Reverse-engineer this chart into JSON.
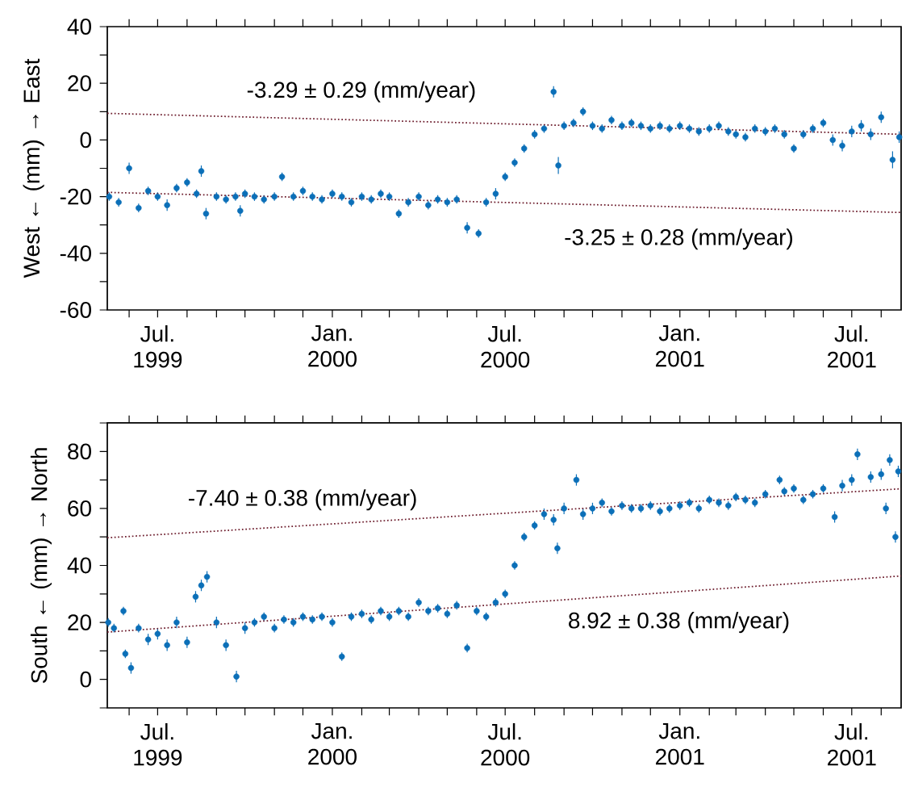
{
  "chart_data": [
    {
      "type": "scatter",
      "ylabel": "West ← (mm) → East",
      "xlim": [
        "1999-05-09",
        "2001-08-22"
      ],
      "ylim": [
        -60,
        40
      ],
      "yticks": [
        -60,
        {
          "value": -50,
          "label": null
        },
        -40,
        {
          "value": -30,
          "label": null
        },
        -20,
        {
          "value": -10,
          "label": null
        },
        0,
        {
          "value": 10,
          "label": null
        },
        20,
        {
          "value": 30,
          "label": null
        },
        40
      ],
      "xticks": [
        {
          "value": "1999-06-01",
          "label": null
        },
        {
          "value": "1999-07-01",
          "label": "Jul. 1999"
        },
        {
          "value": "1999-08-01",
          "label": null
        },
        {
          "value": "1999-09-01",
          "label": null
        },
        {
          "value": "1999-10-01",
          "label": null
        },
        {
          "value": "1999-11-01",
          "label": null
        },
        {
          "value": "1999-12-01",
          "label": null
        },
        {
          "value": "2000-01-01",
          "label": "Jan. 2000"
        },
        {
          "value": "2000-02-01",
          "label": null
        },
        {
          "value": "2000-03-01",
          "label": null
        },
        {
          "value": "2000-04-01",
          "label": null
        },
        {
          "value": "2000-05-01",
          "label": null
        },
        {
          "value": "2000-06-01",
          "label": null
        },
        {
          "value": "2000-07-01",
          "label": "Jul. 2000"
        },
        {
          "value": "2000-08-01",
          "label": null
        },
        {
          "value": "2000-09-01",
          "label": null
        },
        {
          "value": "2000-10-01",
          "label": null
        },
        {
          "value": "2000-11-01",
          "label": null
        },
        {
          "value": "2000-12-01",
          "label": null
        },
        {
          "value": "2001-01-01",
          "label": "Jan. 2001"
        },
        {
          "value": "2001-02-01",
          "label": null
        },
        {
          "value": "2001-03-01",
          "label": null
        },
        {
          "value": "2001-04-01",
          "label": null
        },
        {
          "value": "2001-05-01",
          "label": null
        },
        {
          "value": "2001-06-01",
          "label": null
        },
        {
          "value": "2001-07-01",
          "label": "Jul. 2001"
        },
        {
          "value": "2001-08-01",
          "label": null
        }
      ],
      "series": [
        {
          "color": "#0b6fb8",
          "marker": "circle",
          "x": [
            "1999-05-11",
            "1999-05-21",
            "1999-06-01",
            "1999-06-11",
            "1999-06-21",
            "1999-07-01",
            "1999-07-11",
            "1999-07-21",
            "1999-08-01",
            "1999-08-11",
            "1999-08-16",
            "1999-08-21",
            "1999-09-01",
            "1999-09-11",
            "1999-09-21",
            "1999-09-26",
            "1999-10-01",
            "1999-10-11",
            "1999-10-21",
            "1999-11-01",
            "1999-11-09",
            "1999-11-21",
            "1999-12-01",
            "1999-12-11",
            "1999-12-21",
            "2000-01-01",
            "2000-01-11",
            "2000-01-21",
            "2000-02-01",
            "2000-02-11",
            "2000-02-21",
            "2000-03-01",
            "2000-03-11",
            "2000-03-21",
            "2000-04-01",
            "2000-04-11",
            "2000-04-21",
            "2000-05-01",
            "2000-05-11",
            "2000-05-22",
            "2000-06-03",
            "2000-06-11",
            "2000-06-21",
            "2000-07-01",
            "2000-07-11",
            "2000-07-21",
            "2000-08-01",
            "2000-08-11",
            "2000-08-21",
            "2000-08-26",
            "2000-09-01",
            "2000-09-11",
            "2000-09-21",
            "2000-10-01",
            "2000-10-11",
            "2000-10-21",
            "2000-11-01",
            "2000-11-11",
            "2000-11-21",
            "2000-12-01",
            "2000-12-11",
            "2000-12-21",
            "2001-01-01",
            "2001-01-11",
            "2001-01-21",
            "2001-02-01",
            "2001-02-11",
            "2001-02-21",
            "2001-03-01",
            "2001-03-11",
            "2001-03-21",
            "2001-04-01",
            "2001-04-11",
            "2001-04-21",
            "2001-05-01",
            "2001-05-11",
            "2001-05-21",
            "2001-06-01",
            "2001-06-11",
            "2001-06-21",
            "2001-07-01",
            "2001-07-11",
            "2001-07-21",
            "2001-08-01",
            "2001-08-13",
            "2001-08-20"
          ],
          "values": [
            -20,
            -22,
            -10,
            -24,
            -18,
            -20,
            -23,
            -17,
            -15,
            -19,
            -11,
            -26,
            -20,
            -21,
            -20,
            -25,
            -19,
            -20,
            -21,
            -20,
            -13,
            -20,
            -18,
            -20,
            -21,
            -19,
            -20,
            -22,
            -20,
            -21,
            -19,
            -20,
            -26,
            -22,
            -20,
            -23,
            -21,
            -22,
            -21,
            -31,
            -33,
            -22,
            -19,
            -13,
            -8,
            -3,
            2,
            4,
            17,
            -9,
            5,
            6,
            10,
            5,
            4,
            7,
            5,
            6,
            5,
            4,
            5,
            4,
            5,
            4,
            3,
            4,
            5,
            3,
            2,
            1,
            4,
            3,
            4,
            2,
            -3,
            2,
            4,
            6,
            0,
            -2,
            3,
            5,
            2,
            8,
            -7,
            1
          ],
          "errors": [
            1.5,
            1.5,
            2,
            1.5,
            1.5,
            1.5,
            2,
            1.5,
            1.5,
            1.5,
            2,
            2,
            1.5,
            1.5,
            1.5,
            2,
            1.5,
            1.5,
            1.5,
            1.5,
            1.5,
            1.5,
            1.5,
            1.5,
            1.5,
            1.5,
            1.5,
            1.5,
            1.5,
            1.5,
            1.5,
            1.5,
            1.5,
            1.5,
            1.5,
            1.5,
            1.5,
            1.5,
            1.5,
            2,
            1.5,
            1.5,
            2,
            1.5,
            1.5,
            1.5,
            1.5,
            1.5,
            2,
            3,
            1.5,
            1.5,
            1.5,
            1.5,
            1.5,
            1.5,
            1.5,
            1.5,
            1.5,
            1.5,
            1.5,
            1.5,
            1.5,
            1.5,
            1.5,
            1.5,
            1.5,
            1.5,
            1.5,
            1.5,
            1.5,
            1.5,
            1.5,
            1.5,
            1.5,
            1.5,
            1.5,
            1.5,
            2,
            2,
            2,
            2,
            2,
            2,
            3,
            2
          ]
        },
        {
          "type": "line",
          "color": "#6b1a2a",
          "line_style": "dotted",
          "marker": "none",
          "x": [
            "1999-05-09",
            "2001-08-22"
          ],
          "values": [
            9.4,
            2
          ]
        },
        {
          "type": "line",
          "color": "#6b1a2a",
          "line_style": "dotted",
          "marker": "none",
          "x": [
            "1999-05-09",
            "2001-08-22"
          ],
          "values": [
            -18.5,
            -25.6
          ]
        }
      ],
      "annotations": [
        "-3.29 ± 0.29 (mm/year)",
        "-3.25 ± 0.28 (mm/year)"
      ]
    },
    {
      "type": "scatter",
      "ylabel": "South ← (mm) → North",
      "xlim": [
        "1999-05-09",
        "2001-08-22"
      ],
      "ylim": [
        -10,
        90
      ],
      "yticks": [
        {
          "value": -10,
          "label": null
        },
        0,
        {
          "value": 10,
          "label": null
        },
        20,
        {
          "value": 30,
          "label": null
        },
        40,
        {
          "value": 50,
          "label": null
        },
        60,
        {
          "value": 70,
          "label": null
        },
        80,
        {
          "value": 90,
          "label": null
        }
      ],
      "xticks": [
        {
          "value": "1999-06-01",
          "label": null
        },
        {
          "value": "1999-07-01",
          "label": "Jul. 1999"
        },
        {
          "value": "1999-08-01",
          "label": null
        },
        {
          "value": "1999-09-01",
          "label": null
        },
        {
          "value": "1999-10-01",
          "label": null
        },
        {
          "value": "1999-11-01",
          "label": null
        },
        {
          "value": "1999-12-01",
          "label": null
        },
        {
          "value": "2000-01-01",
          "label": "Jan. 2000"
        },
        {
          "value": "2000-02-01",
          "label": null
        },
        {
          "value": "2000-03-01",
          "label": null
        },
        {
          "value": "2000-04-01",
          "label": null
        },
        {
          "value": "2000-05-01",
          "label": null
        },
        {
          "value": "2000-06-01",
          "label": null
        },
        {
          "value": "2000-07-01",
          "label": "Jul. 2000"
        },
        {
          "value": "2000-08-01",
          "label": null
        },
        {
          "value": "2000-09-01",
          "label": null
        },
        {
          "value": "2000-10-01",
          "label": null
        },
        {
          "value": "2000-11-01",
          "label": null
        },
        {
          "value": "2000-12-01",
          "label": null
        },
        {
          "value": "2001-01-01",
          "label": "Jan. 2001"
        },
        {
          "value": "2001-02-01",
          "label": null
        },
        {
          "value": "2001-03-01",
          "label": null
        },
        {
          "value": "2001-04-01",
          "label": null
        },
        {
          "value": "2001-05-01",
          "label": null
        },
        {
          "value": "2001-06-01",
          "label": null
        },
        {
          "value": "2001-07-01",
          "label": "Jul. 2001"
        },
        {
          "value": "2001-08-01",
          "label": null
        }
      ],
      "series": [
        {
          "color": "#0b6fb8",
          "marker": "circle",
          "x": [
            "1999-05-10",
            "1999-05-16",
            "1999-05-26",
            "1999-05-28",
            "1999-06-03",
            "1999-06-11",
            "1999-06-21",
            "1999-07-01",
            "1999-07-11",
            "1999-07-21",
            "1999-08-01",
            "1999-08-10",
            "1999-08-16",
            "1999-08-22",
            "1999-09-01",
            "1999-09-11",
            "1999-09-22",
            "1999-10-01",
            "1999-10-11",
            "1999-10-21",
            "1999-11-01",
            "1999-11-11",
            "1999-11-21",
            "1999-12-01",
            "1999-12-11",
            "1999-12-21",
            "2000-01-01",
            "2000-01-11",
            "2000-01-21",
            "2000-02-01",
            "2000-02-11",
            "2000-02-21",
            "2000-03-01",
            "2000-03-11",
            "2000-03-21",
            "2000-04-01",
            "2000-04-11",
            "2000-04-21",
            "2000-05-01",
            "2000-05-11",
            "2000-05-22",
            "2000-06-01",
            "2000-06-11",
            "2000-06-21",
            "2000-07-01",
            "2000-07-11",
            "2000-07-21",
            "2000-08-01",
            "2000-08-11",
            "2000-08-21",
            "2000-08-25",
            "2000-09-01",
            "2000-09-14",
            "2000-09-21",
            "2000-10-01",
            "2000-10-11",
            "2000-10-21",
            "2000-11-01",
            "2000-11-11",
            "2000-11-21",
            "2000-12-01",
            "2000-12-11",
            "2000-12-21",
            "2001-01-01",
            "2001-01-11",
            "2001-01-21",
            "2001-02-01",
            "2001-02-11",
            "2001-02-21",
            "2001-03-01",
            "2001-03-11",
            "2001-03-21",
            "2001-04-01",
            "2001-04-16",
            "2001-04-21",
            "2001-05-01",
            "2001-05-11",
            "2001-05-21",
            "2001-06-01",
            "2001-06-13",
            "2001-06-21",
            "2001-07-01",
            "2001-07-07",
            "2001-07-21",
            "2001-08-01",
            "2001-08-06",
            "2001-08-10",
            "2001-08-16",
            "2001-08-19"
          ],
          "values": [
            20,
            18,
            24,
            9,
            4,
            18,
            14,
            16,
            12,
            20,
            13,
            29,
            33,
            36,
            20,
            12,
            1,
            18,
            20,
            22,
            18,
            21,
            20,
            22,
            21,
            22,
            20,
            8,
            22,
            23,
            21,
            24,
            22,
            24,
            22,
            27,
            24,
            25,
            23,
            26,
            11,
            24,
            22,
            27,
            30,
            40,
            50,
            54,
            58,
            56,
            46,
            60,
            70,
            58,
            60,
            62,
            59,
            61,
            60,
            60,
            61,
            59,
            60,
            61,
            62,
            60,
            63,
            62,
            61,
            64,
            63,
            62,
            65,
            70,
            66,
            67,
            63,
            65,
            67,
            57,
            68,
            70,
            79,
            71,
            72,
            60,
            77,
            50,
            73
          ],
          "errors": [
            1.5,
            1.5,
            1.5,
            1.5,
            2,
            1.5,
            2,
            2,
            2,
            2,
            2,
            2,
            2,
            2,
            2,
            2,
            2,
            2,
            1.5,
            1.5,
            1.5,
            1.5,
            1.5,
            1.5,
            1.5,
            1.5,
            1.5,
            1.5,
            1.5,
            1.5,
            1.5,
            1.5,
            1.5,
            1.5,
            1.5,
            1.5,
            1.5,
            1.5,
            1.5,
            1.5,
            1.5,
            1.5,
            1.5,
            1.5,
            1.5,
            1.5,
            1.5,
            1.5,
            2,
            2,
            2,
            2,
            2,
            2,
            2,
            1.5,
            1.5,
            1.5,
            1.5,
            1.5,
            1.5,
            1.5,
            1.5,
            1.5,
            1.5,
            1.5,
            1.5,
            1.5,
            1.5,
            1.5,
            1.5,
            1.5,
            1.5,
            1.5,
            1.5,
            1.5,
            1.5,
            1.5,
            1.5,
            2,
            2,
            2,
            2,
            2,
            2,
            2,
            2,
            2,
            2
          ]
        },
        {
          "type": "line",
          "color": "#6b1a2a",
          "line_style": "dotted",
          "marker": "none",
          "x": [
            "1999-05-09",
            "2001-08-22"
          ],
          "values": [
            49.7,
            66.9
          ]
        },
        {
          "type": "line",
          "color": "#6b1a2a",
          "line_style": "dotted",
          "marker": "none",
          "x": [
            "1999-05-09",
            "2001-08-22"
          ],
          "values": [
            16.6,
            36.3
          ]
        }
      ],
      "annotations": [
        "-7.40 ± 0.38 (mm/year)",
        "8.92 ± 0.38 (mm/year)"
      ]
    }
  ]
}
